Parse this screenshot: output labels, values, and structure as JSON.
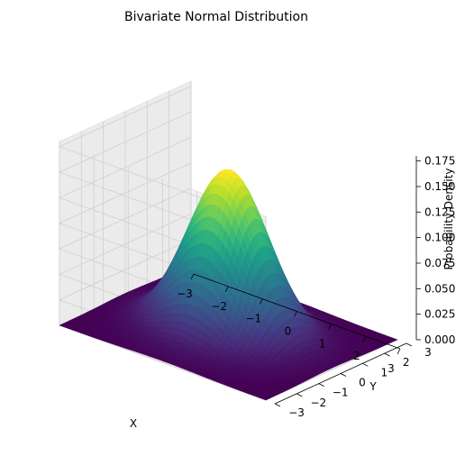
{
  "chart_data": {
    "type": "surface",
    "title": "Bivariate Normal Distribution",
    "xlabel": "X",
    "ylabel": "Y",
    "zlabel": "Probability Density",
    "xlim": [
      -3,
      3
    ],
    "ylim": [
      -3,
      3
    ],
    "zlim": [
      0,
      0.18
    ],
    "x_ticks": [
      "−3",
      "−2",
      "−1",
      "0",
      "1",
      "2",
      "3"
    ],
    "y_ticks": [
      "−3",
      "−2",
      "−1",
      "0",
      "1",
      "2",
      "3"
    ],
    "z_ticks": [
      "0.000",
      "0.025",
      "0.050",
      "0.075",
      "0.100",
      "0.125",
      "0.150",
      "0.175"
    ],
    "x_tick_values": [
      -3,
      -2,
      -1,
      0,
      1,
      2,
      3
    ],
    "y_tick_values": [
      -3,
      -2,
      -1,
      0,
      1,
      2,
      3
    ],
    "z_tick_values": [
      0,
      0.025,
      0.05,
      0.075,
      0.1,
      0.125,
      0.15,
      0.175
    ],
    "distribution": {
      "mean": [
        0,
        0
      ],
      "std": [
        1,
        1
      ],
      "peak_density": 0.159
    },
    "colormap": "viridis",
    "grid": true
  }
}
